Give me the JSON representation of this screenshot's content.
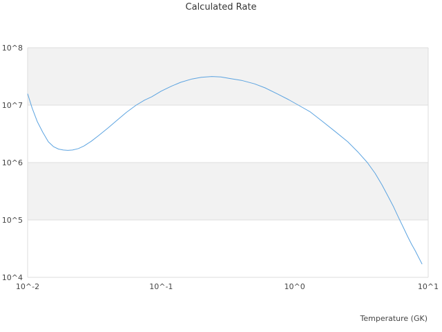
{
  "chart_data": {
    "type": "line",
    "title": "Calculated Rate",
    "xlabel": "Temperature (GK)",
    "ylabel": "",
    "xscale": "log",
    "yscale": "log",
    "xlim": [
      0.01,
      10
    ],
    "ylim": [
      10000,
      100000000
    ],
    "x_ticks": [
      "10^-2",
      "10^-1",
      "10^0",
      "10^1"
    ],
    "y_ticks": [
      "10^4",
      "10^5",
      "10^6",
      "10^7",
      "10^8"
    ],
    "grid": "horizontal bands",
    "band_color": "#f2f2f2",
    "line_color": "#5ba3e0",
    "series": [
      {
        "x": [
          0.01,
          0.0108,
          0.0118,
          0.013,
          0.0143,
          0.0156,
          0.017,
          0.0185,
          0.02,
          0.0217,
          0.024,
          0.0265,
          0.03,
          0.034,
          0.04,
          0.047,
          0.055,
          0.065,
          0.075,
          0.085,
          0.1,
          0.12,
          0.14,
          0.17,
          0.2,
          0.24,
          0.28,
          0.33,
          0.4,
          0.5,
          0.6,
          0.75,
          0.9,
          1.1,
          1.3,
          1.6,
          2.0,
          2.5,
          3.0,
          3.5,
          4.0,
          4.5,
          5.0,
          5.5,
          6.0,
          6.5,
          7.0,
          7.5,
          8.0,
          8.5,
          9.0
        ],
        "y": [
          15800000,
          8900000,
          5200000,
          3350000,
          2300000,
          1900000,
          1720000,
          1650000,
          1630000,
          1650000,
          1750000,
          1950000,
          2350000,
          2950000,
          4000000,
          5500000,
          7500000,
          10000000,
          12200000,
          14000000,
          17500000,
          21500000,
          25000000,
          28500000,
          30500000,
          31500000,
          31000000,
          29000000,
          27000000,
          23500000,
          20000000,
          15500000,
          12500000,
          9600000,
          7700000,
          5300000,
          3500000,
          2300000,
          1500000,
          1000000,
          650000,
          410000,
          260000,
          170000,
          110000,
          75000,
          52000,
          38000,
          29000,
          22000,
          17000
        ]
      }
    ]
  }
}
